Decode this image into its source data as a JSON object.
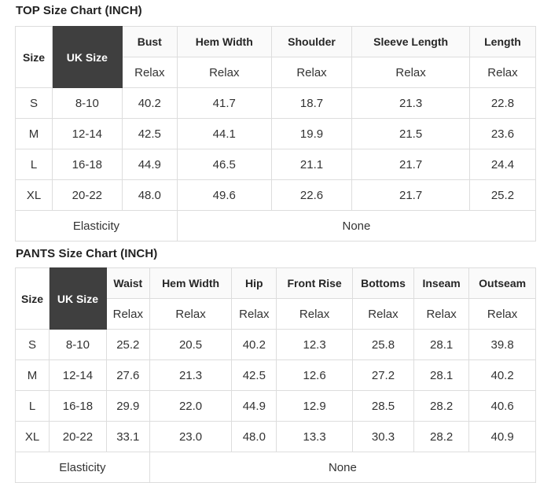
{
  "chart_data": [
    {
      "type": "table",
      "title": "TOP Size Chart (INCH)",
      "corner_headers": [
        "Size",
        "UK Size"
      ],
      "measure_columns": [
        "Bust",
        "Hem Width",
        "Shoulder",
        "Sleeve Length",
        "Length"
      ],
      "fit_type": "Relax",
      "rows": [
        {
          "size": "S",
          "uk_size": "8-10",
          "values": [
            "40.2",
            "41.7",
            "18.7",
            "21.3",
            "22.8"
          ]
        },
        {
          "size": "M",
          "uk_size": "12-14",
          "values": [
            "42.5",
            "44.1",
            "19.9",
            "21.5",
            "23.6"
          ]
        },
        {
          "size": "L",
          "uk_size": "16-18",
          "values": [
            "44.9",
            "46.5",
            "21.1",
            "21.7",
            "24.4"
          ]
        },
        {
          "size": "XL",
          "uk_size": "20-22",
          "values": [
            "48.0",
            "49.6",
            "22.6",
            "21.7",
            "25.2"
          ]
        }
      ],
      "elasticity_label": "Elasticity",
      "elasticity_value": "None"
    },
    {
      "type": "table",
      "title": "PANTS Size Chart (INCH)",
      "corner_headers": [
        "Size",
        "UK Size"
      ],
      "measure_columns": [
        "Waist",
        "Hem Width",
        "Hip",
        "Front Rise",
        "Bottoms",
        "Inseam",
        "Outseam"
      ],
      "fit_type": "Relax",
      "rows": [
        {
          "size": "S",
          "uk_size": "8-10",
          "values": [
            "25.2",
            "20.5",
            "40.2",
            "12.3",
            "25.8",
            "28.1",
            "39.8"
          ]
        },
        {
          "size": "M",
          "uk_size": "12-14",
          "values": [
            "27.6",
            "21.3",
            "42.5",
            "12.6",
            "27.2",
            "28.1",
            "40.2"
          ]
        },
        {
          "size": "L",
          "uk_size": "16-18",
          "values": [
            "29.9",
            "22.0",
            "44.9",
            "12.9",
            "28.5",
            "28.2",
            "40.6"
          ]
        },
        {
          "size": "XL",
          "uk_size": "20-22",
          "values": [
            "33.1",
            "23.0",
            "48.0",
            "13.3",
            "30.3",
            "28.2",
            "40.9"
          ]
        }
      ],
      "elasticity_label": "Elasticity",
      "elasticity_value": "None"
    }
  ],
  "colors": {
    "dark_header_bg": "#3f3f3f",
    "dark_header_text": "#ffffff",
    "table_border": "#dddddd",
    "body_text": "#333333",
    "title_text": "#222222"
  }
}
